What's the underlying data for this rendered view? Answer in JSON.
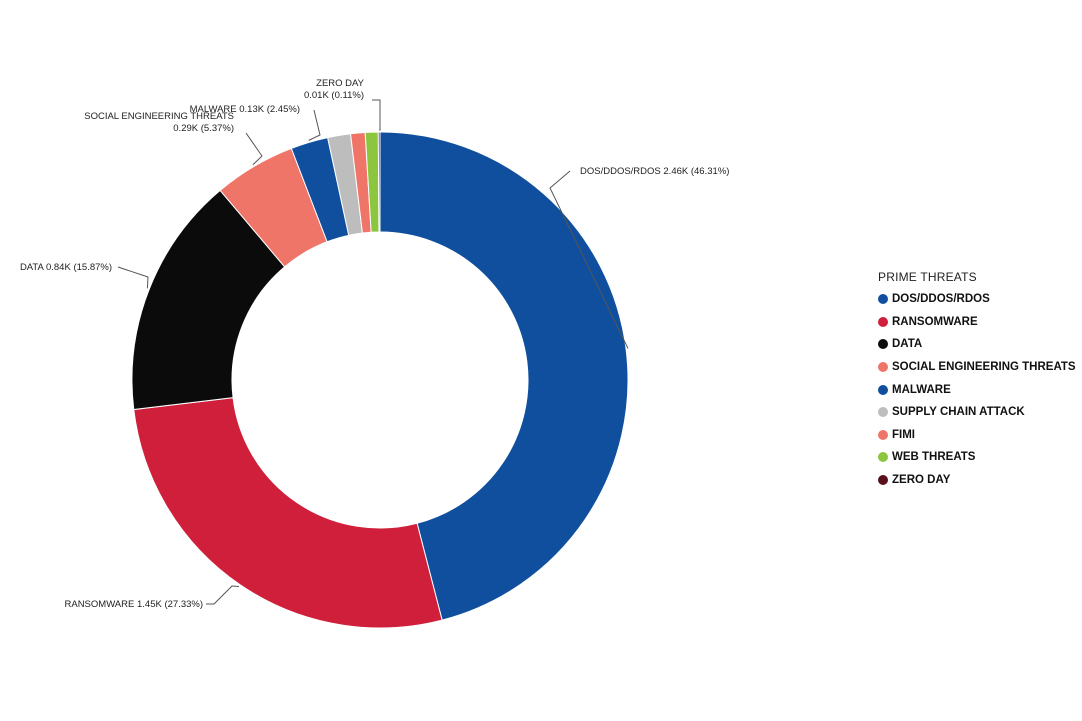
{
  "chart_data": {
    "type": "pie",
    "variant": "donut",
    "legend_title": "PRIME THREATS",
    "legend_position": "right",
    "slices": [
      {
        "name": "DOS/DDOS/RDOS",
        "value": 2.46,
        "percent": 46.31,
        "label": "DOS/DDOS/RDOS 2.46K (46.31%)",
        "color": "#0f4f9e"
      },
      {
        "name": "RANSOMWARE",
        "value": 1.45,
        "percent": 27.33,
        "label": "RANSOMWARE 1.45K (27.33%)",
        "color": "#cf1f3a"
      },
      {
        "name": "DATA",
        "value": 0.84,
        "percent": 15.87,
        "label": "DATA 0.84K (15.87%)",
        "color": "#0b0b0b"
      },
      {
        "name": "SOCIAL ENGINEERING THREATS",
        "value": 0.29,
        "percent": 5.37,
        "label_lines": [
          "SOCIAL ENGINEERING THREATS",
          "0.29K (5.37%)"
        ],
        "color": "#f07569"
      },
      {
        "name": "MALWARE",
        "value": 0.13,
        "percent": 2.45,
        "label": "MALWARE 0.13K (2.45%)",
        "color": "#0f4f9e"
      },
      {
        "name": "SUPPLY CHAIN ATTACK",
        "percent": 1.5,
        "color": "#bdbdbd"
      },
      {
        "name": "FIMI",
        "percent": 0.95,
        "color": "#f07569"
      },
      {
        "name": "WEB THREATS",
        "percent": 0.85,
        "color": "#8cc63f"
      },
      {
        "name": "ZERO DAY",
        "value": 0.01,
        "percent": 0.11,
        "label_lines": [
          "ZERO DAY",
          "0.01K (0.11%)"
        ],
        "color": "#5a0f1a"
      }
    ]
  }
}
